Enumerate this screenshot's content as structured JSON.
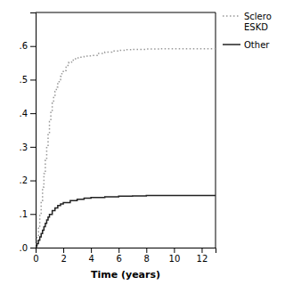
{
  "chart_data": {
    "type": "step",
    "xlabel": "Time (years)",
    "xlim": [
      0,
      13
    ],
    "ylim": [
      0,
      0.7
    ],
    "xticks": [
      0,
      2,
      4,
      6,
      8,
      10,
      12
    ],
    "yticks": [
      {
        "value": 0.0,
        "label": ".0"
      },
      {
        "value": 0.1,
        "label": ".1"
      },
      {
        "value": 0.2,
        "label": ".2"
      },
      {
        "value": 0.3,
        "label": ".3"
      },
      {
        "value": 0.4,
        "label": ".4"
      },
      {
        "value": 0.5,
        "label": ".5"
      },
      {
        "value": 0.6,
        "label": ".6"
      }
    ],
    "grid": false,
    "legend": "right",
    "series": [
      {
        "name": "Sclero\nESKD",
        "color": "#999999",
        "line_style": "dotted",
        "x": [
          0,
          0.05,
          0.1,
          0.2,
          0.3,
          0.4,
          0.5,
          0.6,
          0.7,
          0.8,
          0.9,
          1.0,
          1.1,
          1.2,
          1.3,
          1.4,
          1.5,
          1.6,
          1.7,
          1.8,
          1.9,
          2.0,
          2.2,
          2.4,
          2.6,
          2.8,
          3.0,
          3.2,
          3.4,
          3.5,
          3.6,
          3.8,
          4.0,
          4.5,
          5.0,
          5.5,
          6.0,
          6.5,
          7.0,
          8.0,
          9.0,
          10.0,
          11.0,
          12.0,
          13.0
        ],
        "values": [
          0,
          0.015,
          0.03,
          0.06,
          0.1,
          0.14,
          0.18,
          0.22,
          0.26,
          0.3,
          0.34,
          0.375,
          0.405,
          0.43,
          0.45,
          0.465,
          0.478,
          0.49,
          0.5,
          0.51,
          0.518,
          0.527,
          0.542,
          0.552,
          0.558,
          0.562,
          0.565,
          0.567,
          0.568,
          0.569,
          0.57,
          0.571,
          0.572,
          0.578,
          0.582,
          0.585,
          0.587,
          0.589,
          0.59,
          0.591,
          0.592,
          0.592,
          0.592,
          0.592,
          0.592
        ]
      },
      {
        "name": "Other",
        "color": "#222222",
        "line_style": "solid",
        "x": [
          0,
          0.05,
          0.1,
          0.2,
          0.3,
          0.4,
          0.5,
          0.6,
          0.7,
          0.8,
          0.9,
          1.0,
          1.2,
          1.4,
          1.6,
          1.8,
          2.0,
          2.5,
          3.0,
          3.5,
          4.0,
          5.0,
          6.0,
          7.0,
          8.0,
          9.0,
          10.0,
          11.0,
          12.0,
          13.0
        ],
        "values": [
          0,
          0.005,
          0.012,
          0.022,
          0.032,
          0.042,
          0.052,
          0.062,
          0.072,
          0.082,
          0.091,
          0.099,
          0.11,
          0.118,
          0.125,
          0.13,
          0.134,
          0.14,
          0.144,
          0.147,
          0.149,
          0.151,
          0.153,
          0.154,
          0.155,
          0.155,
          0.155,
          0.155,
          0.155,
          0.155
        ]
      }
    ]
  }
}
